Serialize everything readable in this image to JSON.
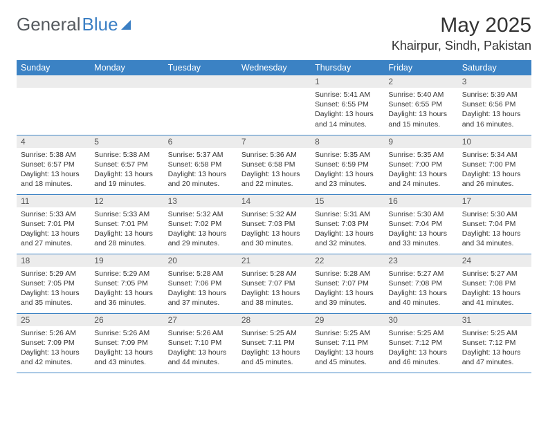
{
  "brand": {
    "part1": "General",
    "part2": "Blue"
  },
  "title": "May 2025",
  "location": "Khairpur, Sindh, Pakistan",
  "colors": {
    "header_bg": "#3b82c4",
    "header_text": "#ffffff",
    "daynum_bg": "#ececec",
    "border": "#3b82c4",
    "logo_gray": "#555a5f",
    "logo_blue": "#3b7fc4"
  },
  "weekdays": [
    "Sunday",
    "Monday",
    "Tuesday",
    "Wednesday",
    "Thursday",
    "Friday",
    "Saturday"
  ],
  "weeks": [
    [
      null,
      null,
      null,
      null,
      {
        "n": "1",
        "sunrise": "Sunrise: 5:41 AM",
        "sunset": "Sunset: 6:55 PM",
        "daylight": "Daylight: 13 hours and 14 minutes."
      },
      {
        "n": "2",
        "sunrise": "Sunrise: 5:40 AM",
        "sunset": "Sunset: 6:55 PM",
        "daylight": "Daylight: 13 hours and 15 minutes."
      },
      {
        "n": "3",
        "sunrise": "Sunrise: 5:39 AM",
        "sunset": "Sunset: 6:56 PM",
        "daylight": "Daylight: 13 hours and 16 minutes."
      }
    ],
    [
      {
        "n": "4",
        "sunrise": "Sunrise: 5:38 AM",
        "sunset": "Sunset: 6:57 PM",
        "daylight": "Daylight: 13 hours and 18 minutes."
      },
      {
        "n": "5",
        "sunrise": "Sunrise: 5:38 AM",
        "sunset": "Sunset: 6:57 PM",
        "daylight": "Daylight: 13 hours and 19 minutes."
      },
      {
        "n": "6",
        "sunrise": "Sunrise: 5:37 AM",
        "sunset": "Sunset: 6:58 PM",
        "daylight": "Daylight: 13 hours and 20 minutes."
      },
      {
        "n": "7",
        "sunrise": "Sunrise: 5:36 AM",
        "sunset": "Sunset: 6:58 PM",
        "daylight": "Daylight: 13 hours and 22 minutes."
      },
      {
        "n": "8",
        "sunrise": "Sunrise: 5:35 AM",
        "sunset": "Sunset: 6:59 PM",
        "daylight": "Daylight: 13 hours and 23 minutes."
      },
      {
        "n": "9",
        "sunrise": "Sunrise: 5:35 AM",
        "sunset": "Sunset: 7:00 PM",
        "daylight": "Daylight: 13 hours and 24 minutes."
      },
      {
        "n": "10",
        "sunrise": "Sunrise: 5:34 AM",
        "sunset": "Sunset: 7:00 PM",
        "daylight": "Daylight: 13 hours and 26 minutes."
      }
    ],
    [
      {
        "n": "11",
        "sunrise": "Sunrise: 5:33 AM",
        "sunset": "Sunset: 7:01 PM",
        "daylight": "Daylight: 13 hours and 27 minutes."
      },
      {
        "n": "12",
        "sunrise": "Sunrise: 5:33 AM",
        "sunset": "Sunset: 7:01 PM",
        "daylight": "Daylight: 13 hours and 28 minutes."
      },
      {
        "n": "13",
        "sunrise": "Sunrise: 5:32 AM",
        "sunset": "Sunset: 7:02 PM",
        "daylight": "Daylight: 13 hours and 29 minutes."
      },
      {
        "n": "14",
        "sunrise": "Sunrise: 5:32 AM",
        "sunset": "Sunset: 7:03 PM",
        "daylight": "Daylight: 13 hours and 30 minutes."
      },
      {
        "n": "15",
        "sunrise": "Sunrise: 5:31 AM",
        "sunset": "Sunset: 7:03 PM",
        "daylight": "Daylight: 13 hours and 32 minutes."
      },
      {
        "n": "16",
        "sunrise": "Sunrise: 5:30 AM",
        "sunset": "Sunset: 7:04 PM",
        "daylight": "Daylight: 13 hours and 33 minutes."
      },
      {
        "n": "17",
        "sunrise": "Sunrise: 5:30 AM",
        "sunset": "Sunset: 7:04 PM",
        "daylight": "Daylight: 13 hours and 34 minutes."
      }
    ],
    [
      {
        "n": "18",
        "sunrise": "Sunrise: 5:29 AM",
        "sunset": "Sunset: 7:05 PM",
        "daylight": "Daylight: 13 hours and 35 minutes."
      },
      {
        "n": "19",
        "sunrise": "Sunrise: 5:29 AM",
        "sunset": "Sunset: 7:05 PM",
        "daylight": "Daylight: 13 hours and 36 minutes."
      },
      {
        "n": "20",
        "sunrise": "Sunrise: 5:28 AM",
        "sunset": "Sunset: 7:06 PM",
        "daylight": "Daylight: 13 hours and 37 minutes."
      },
      {
        "n": "21",
        "sunrise": "Sunrise: 5:28 AM",
        "sunset": "Sunset: 7:07 PM",
        "daylight": "Daylight: 13 hours and 38 minutes."
      },
      {
        "n": "22",
        "sunrise": "Sunrise: 5:28 AM",
        "sunset": "Sunset: 7:07 PM",
        "daylight": "Daylight: 13 hours and 39 minutes."
      },
      {
        "n": "23",
        "sunrise": "Sunrise: 5:27 AM",
        "sunset": "Sunset: 7:08 PM",
        "daylight": "Daylight: 13 hours and 40 minutes."
      },
      {
        "n": "24",
        "sunrise": "Sunrise: 5:27 AM",
        "sunset": "Sunset: 7:08 PM",
        "daylight": "Daylight: 13 hours and 41 minutes."
      }
    ],
    [
      {
        "n": "25",
        "sunrise": "Sunrise: 5:26 AM",
        "sunset": "Sunset: 7:09 PM",
        "daylight": "Daylight: 13 hours and 42 minutes."
      },
      {
        "n": "26",
        "sunrise": "Sunrise: 5:26 AM",
        "sunset": "Sunset: 7:09 PM",
        "daylight": "Daylight: 13 hours and 43 minutes."
      },
      {
        "n": "27",
        "sunrise": "Sunrise: 5:26 AM",
        "sunset": "Sunset: 7:10 PM",
        "daylight": "Daylight: 13 hours and 44 minutes."
      },
      {
        "n": "28",
        "sunrise": "Sunrise: 5:25 AM",
        "sunset": "Sunset: 7:11 PM",
        "daylight": "Daylight: 13 hours and 45 minutes."
      },
      {
        "n": "29",
        "sunrise": "Sunrise: 5:25 AM",
        "sunset": "Sunset: 7:11 PM",
        "daylight": "Daylight: 13 hours and 45 minutes."
      },
      {
        "n": "30",
        "sunrise": "Sunrise: 5:25 AM",
        "sunset": "Sunset: 7:12 PM",
        "daylight": "Daylight: 13 hours and 46 minutes."
      },
      {
        "n": "31",
        "sunrise": "Sunrise: 5:25 AM",
        "sunset": "Sunset: 7:12 PM",
        "daylight": "Daylight: 13 hours and 47 minutes."
      }
    ]
  ]
}
